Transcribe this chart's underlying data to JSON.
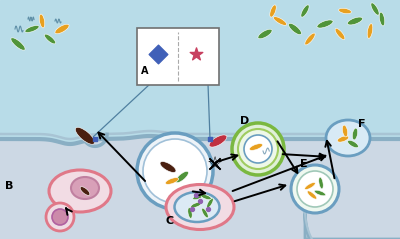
{
  "bg_sky": "#b8dce8",
  "cell_fill": "#ccd8e4",
  "cell_fill2": "#d0dce8",
  "membrane_color": "#8aafc4",
  "membrane_inner": "#a8c4d4",
  "pink_mem": "#e07888",
  "blue_mem": "#6a9ec0",
  "green_ring1": "#7ab840",
  "green_ring2": "#a0cc60",
  "bacteria_orange": "#e8a020",
  "bacteria_green": "#50943a",
  "bacteria_dark": "#4a2010",
  "bacteria_red": "#c03040",
  "nucleus_pink": "#cc80a0",
  "nucleus_purple": "#9070b0",
  "label_A": "A",
  "label_B": "B",
  "label_C": "C",
  "label_D": "D",
  "label_E": "E",
  "label_F": "F"
}
